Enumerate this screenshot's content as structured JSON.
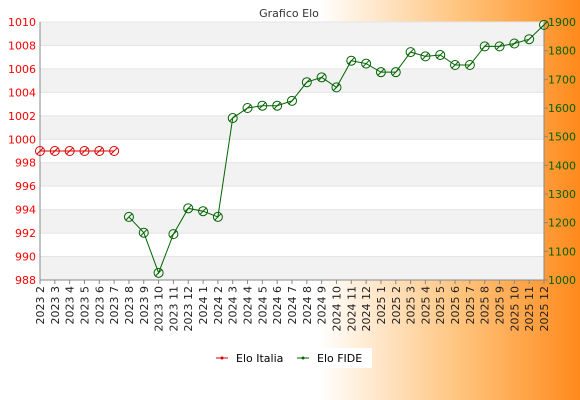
{
  "chart_data": {
    "type": "line",
    "title": "Grafico Elo",
    "x": [
      "2023 2",
      "2023 3",
      "2023 4",
      "2023 5",
      "2023 6",
      "2023 7",
      "2023 8",
      "2023 9",
      "2023 10",
      "2023 11",
      "2023 12",
      "2024 1",
      "2024 2",
      "2024 3",
      "2024 4",
      "2024 5",
      "2024 6",
      "2024 7",
      "2024 8",
      "2024 9",
      "2024 10",
      "2024 11",
      "2024 12",
      "2025 1",
      "2025 2",
      "2025 3",
      "2025 4",
      "2025 5",
      "2025 6",
      "2025 7",
      "2025 8",
      "2025 9",
      "2025 10",
      "2025 11",
      "2025 12"
    ],
    "left_axis": {
      "ylim": [
        988,
        1010
      ],
      "ticks": [
        988,
        990,
        992,
        994,
        996,
        998,
        1000,
        1002,
        1004,
        1006,
        1008,
        1010
      ],
      "color": "#ff0000"
    },
    "right_axis": {
      "ylim": [
        1000,
        1900
      ],
      "ticks": [
        1000,
        1100,
        1200,
        1300,
        1400,
        1500,
        1600,
        1700,
        1800,
        1900
      ],
      "color": "#006400"
    },
    "series": [
      {
        "name": "Elo Italia",
        "axis": "left",
        "color": "#dd0000",
        "values": [
          999,
          999,
          999,
          999,
          999,
          999,
          null,
          null,
          null,
          null,
          null,
          null,
          null,
          null,
          null,
          null,
          null,
          null,
          null,
          null,
          null,
          null,
          null,
          null,
          null,
          null,
          null,
          null,
          null,
          null,
          null,
          null,
          null,
          null,
          null
        ]
      },
      {
        "name": "Elo FIDE",
        "axis": "right",
        "color": "#006400",
        "values": [
          null,
          null,
          null,
          null,
          null,
          null,
          1220,
          1165,
          1025,
          1160,
          1250,
          1240,
          1220,
          1565,
          1600,
          1608,
          1608,
          1625,
          1690,
          1707,
          1672,
          1765,
          1755,
          1725,
          1725,
          1795,
          1780,
          1785,
          1750,
          1750,
          1815,
          1815,
          1825,
          1840,
          1890
        ]
      }
    ],
    "grid": true,
    "legend_position": "bottom-center"
  }
}
